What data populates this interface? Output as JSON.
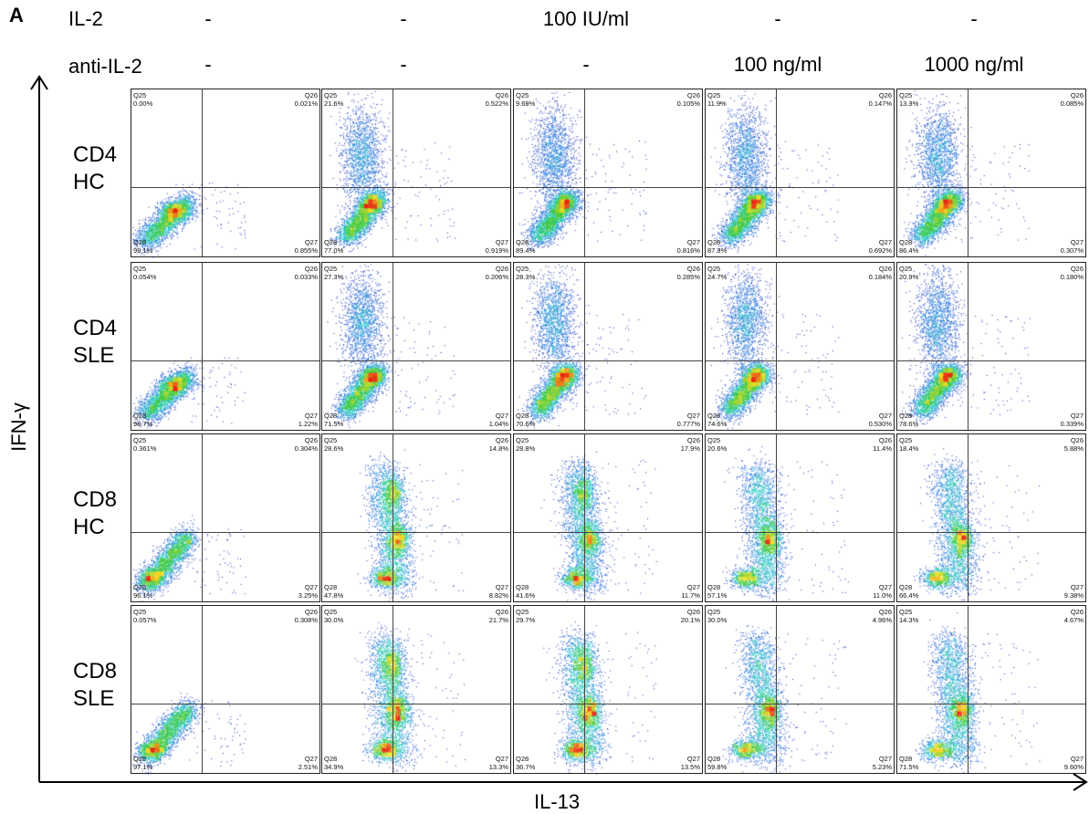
{
  "panel_label": "A",
  "header": {
    "il2_label": "IL-2",
    "anti_il2_label": "anti-IL-2",
    "il2_values": [
      "-",
      "-",
      "100 IU/ml",
      "-",
      "-"
    ],
    "anti_il2_values": [
      "-",
      "-",
      "-",
      "100 ng/ml",
      "1000 ng/ml"
    ]
  },
  "rows": [
    {
      "line1": "CD4",
      "line2": "HC"
    },
    {
      "line1": "CD4",
      "line2": "SLE"
    },
    {
      "line1": "CD8",
      "line2": "HC"
    },
    {
      "line1": "CD8",
      "line2": "SLE"
    }
  ],
  "quadrant_names": {
    "tl": "Q25",
    "tr": "Q26",
    "br": "Q27",
    "bl": "Q28"
  },
  "chart_data": {
    "type": "scatter",
    "subtype": "flow cytometry density dot plots with quadrant gates",
    "xlabel": "IL-13",
    "ylabel": "IFN-γ",
    "colors": {
      "low": "#1a1aa8",
      "mid": "#28c8a0",
      "high": "#e02010"
    },
    "plots": [
      [
        {
          "Q25": "0.00%",
          "Q26": "0.021%",
          "Q27": "0.855%",
          "Q28": "99.1%"
        },
        {
          "Q25": "21.6%",
          "Q26": "0.522%",
          "Q27": "0.919%",
          "Q28": "77.0%"
        },
        {
          "Q25": "9.69%",
          "Q26": "0.105%",
          "Q27": "0.816%",
          "Q28": "89.4%"
        },
        {
          "Q25": "11.9%",
          "Q26": "0.147%",
          "Q27": "0.692%",
          "Q28": "87.3%"
        },
        {
          "Q25": "13.3%",
          "Q26": "0.085%",
          "Q27": "0.307%",
          "Q28": "86.4%"
        }
      ],
      [
        {
          "Q25": "0.054%",
          "Q26": "0.033%",
          "Q27": "1.22%",
          "Q28": "98.7%"
        },
        {
          "Q25": "27.3%",
          "Q26": "0.206%",
          "Q27": "1.04%",
          "Q28": "71.5%"
        },
        {
          "Q25": "28.3%",
          "Q26": "0.285%",
          "Q27": "0.777%",
          "Q28": "70.6%"
        },
        {
          "Q25": "24.7%",
          "Q26": "0.184%",
          "Q27": "0.530%",
          "Q28": "74.6%"
        },
        {
          "Q25": "20.9%",
          "Q26": "0.180%",
          "Q27": "0.339%",
          "Q28": "78.6%"
        }
      ],
      [
        {
          "Q25": "0.361%",
          "Q26": "0.304%",
          "Q27": "3.25%",
          "Q28": "96.1%"
        },
        {
          "Q25": "28.6%",
          "Q26": "14.8%",
          "Q27": "8.82%",
          "Q28": "47.8%"
        },
        {
          "Q25": "28.8%",
          "Q26": "17.9%",
          "Q27": "11.7%",
          "Q28": "41.6%"
        },
        {
          "Q25": "20.6%",
          "Q26": "11.4%",
          "Q27": "11.0%",
          "Q28": "57.1%"
        },
        {
          "Q25": "18.4%",
          "Q26": "5.88%",
          "Q27": "9.38%",
          "Q28": "66.4%"
        }
      ],
      [
        {
          "Q25": "0.057%",
          "Q26": "0.308%",
          "Q27": "2.51%",
          "Q28": "97.1%"
        },
        {
          "Q25": "30.0%",
          "Q26": "21.7%",
          "Q27": "13.3%",
          "Q28": "34.9%"
        },
        {
          "Q25": "29.7%",
          "Q26": "20.1%",
          "Q27": "13.5%",
          "Q28": "36.7%"
        },
        {
          "Q25": "30.0%",
          "Q26": "4.96%",
          "Q27": "5.23%",
          "Q28": "59.8%"
        },
        {
          "Q25": "14.3%",
          "Q26": "4.67%",
          "Q27": "9.60%",
          "Q28": "71.5%"
        }
      ]
    ]
  }
}
